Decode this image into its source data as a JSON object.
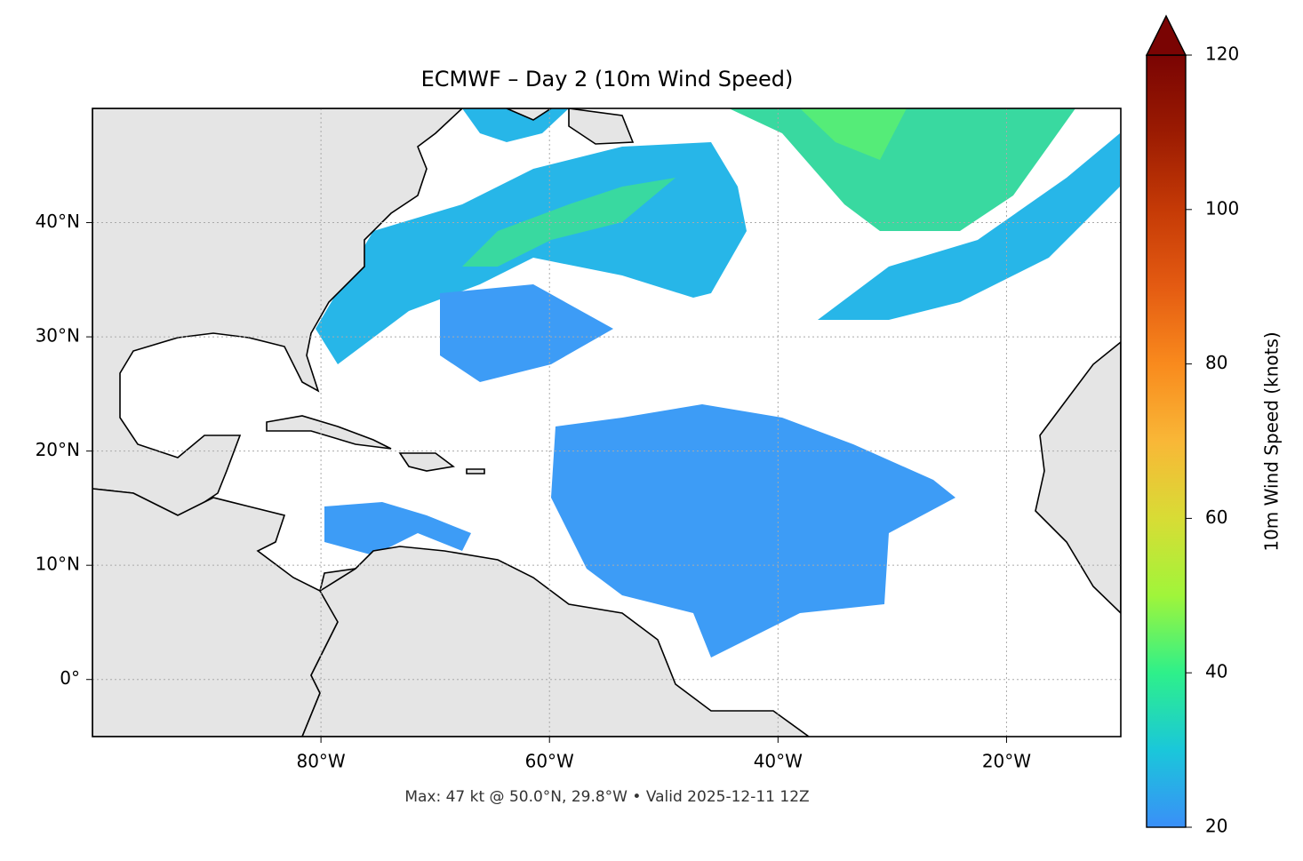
{
  "map": {
    "title": "ECMWF – Day 2 (10m Wind Speed)",
    "footnote": "Max: 47 kt @ 50.0°N, 29.8°W • Valid 2025-12-11 12Z",
    "lonlim": [
      -100,
      -10
    ],
    "latlim": [
      -5,
      50
    ],
    "lon_ticks": [
      {
        "value": -80,
        "label": "80°W"
      },
      {
        "value": -60,
        "label": "60°W"
      },
      {
        "value": -40,
        "label": "40°W"
      },
      {
        "value": -20,
        "label": "20°W"
      }
    ],
    "lat_ticks": [
      {
        "value": 0,
        "label": "0°"
      },
      {
        "value": 10,
        "label": "10°N"
      },
      {
        "value": 20,
        "label": "20°N"
      },
      {
        "value": 30,
        "label": "30°N"
      },
      {
        "value": 40,
        "label": "40°N"
      }
    ],
    "grid": true,
    "colorbar": {
      "label": "10m Wind Speed (knots)",
      "lim": [
        20,
        120
      ],
      "ticks": [
        20,
        40,
        60,
        80,
        100,
        120
      ],
      "extend": "max",
      "colormap": [
        "#3a8ff8",
        "#1ac7da",
        "#2ef08a",
        "#a0f53a",
        "#d8dc35",
        "#f9b737",
        "#f98a1d",
        "#e45b12",
        "#c53a06",
        "#9b1b02",
        "#7a0403"
      ]
    }
  }
}
